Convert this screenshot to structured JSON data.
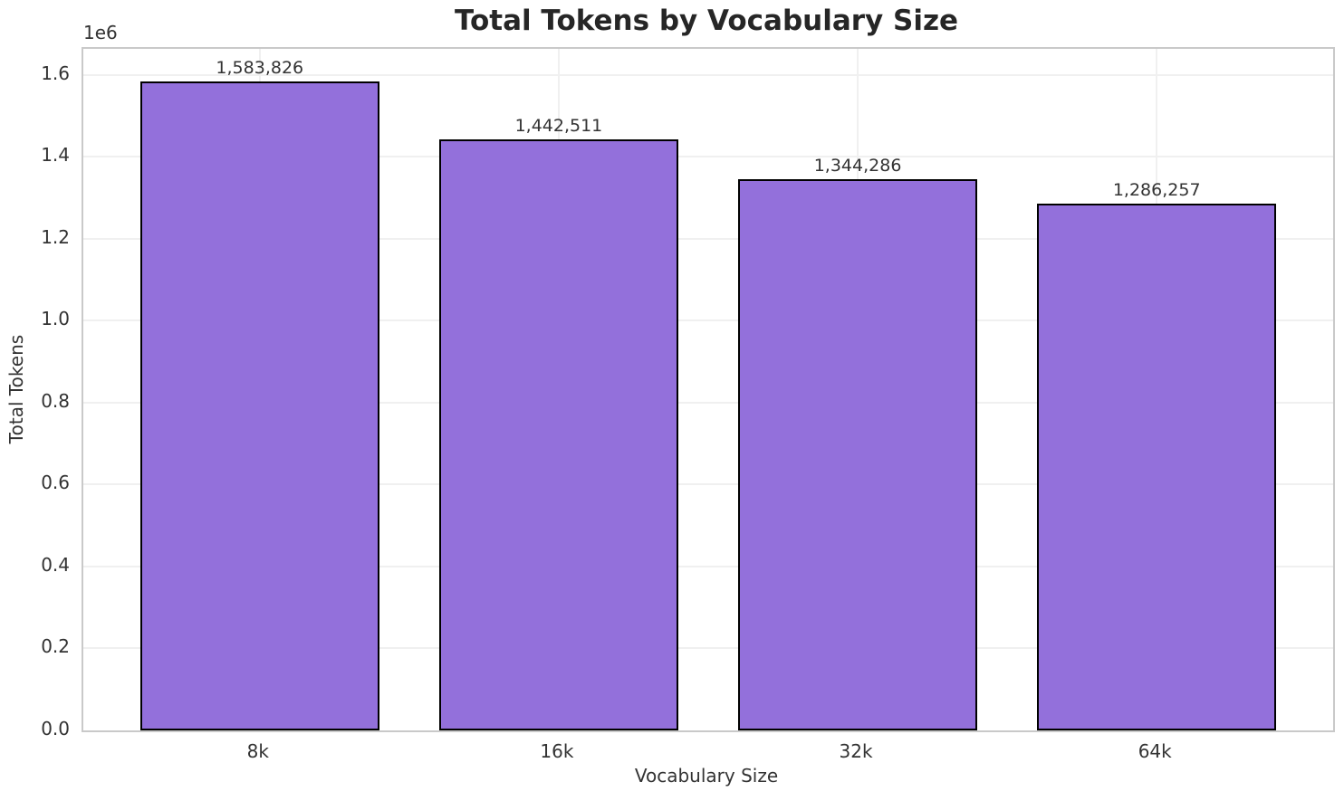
{
  "chart_data": {
    "type": "bar",
    "title": "Total Tokens by Vocabulary Size",
    "xlabel": "Vocabulary Size",
    "ylabel": "Total Tokens",
    "y_offset_label": "1e6",
    "categories": [
      "8k",
      "16k",
      "32k",
      "64k"
    ],
    "values": [
      1583826,
      1442511,
      1344286,
      1286257
    ],
    "bar_labels": [
      "1,583,826",
      "1,442,511",
      "1,344,286",
      "1,286,257"
    ],
    "yticks": {
      "values": [
        0,
        200000,
        400000,
        600000,
        800000,
        1000000,
        1200000,
        1400000,
        1600000
      ],
      "labels": [
        "0.0",
        "0.2",
        "0.4",
        "0.6",
        "0.8",
        "1.0",
        "1.2",
        "1.4",
        "1.6"
      ]
    },
    "ylim": [
      0,
      1663017
    ],
    "xlim": [
      -0.59,
      3.59
    ],
    "bar_width": 0.8,
    "grid": true,
    "legend_position": "none",
    "colors": {
      "bar_fill": "#9370DB",
      "bar_edge": "#000000",
      "grid": "#f0f0f0",
      "spine": "#c9c9c9",
      "text": "#333333",
      "title": "#262626",
      "background": "#ffffff"
    }
  }
}
